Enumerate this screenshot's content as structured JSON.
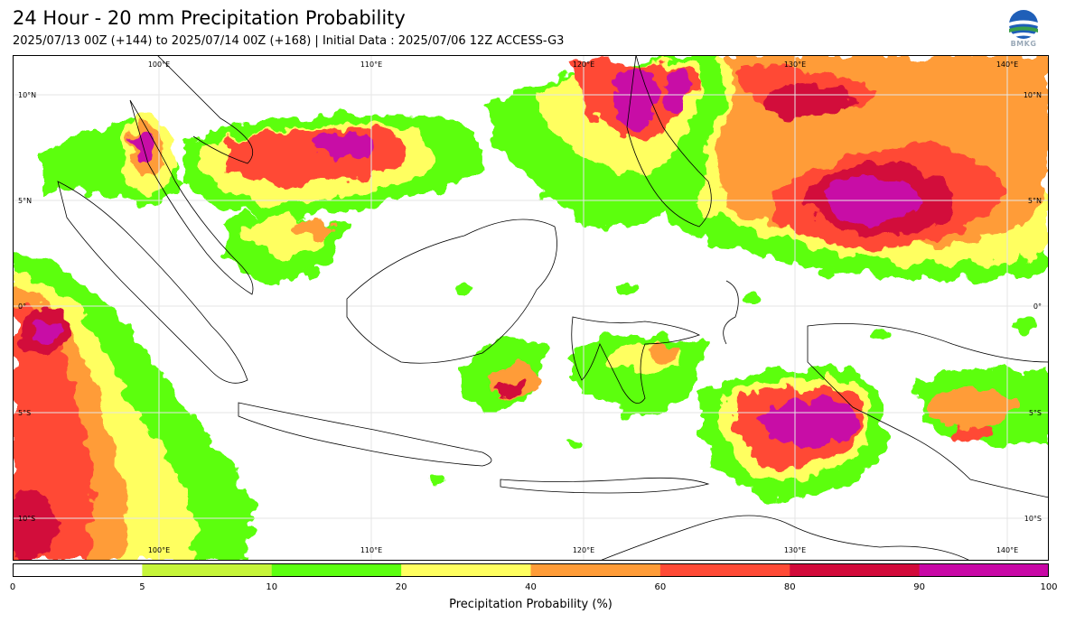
{
  "header": {
    "title": "24 Hour - 20 mm Precipitation Probability",
    "subtitle": "2025/07/13 00Z (+144) to 2025/07/14 00Z (+168) | Initial Data : 2025/07/06 12Z ACCESS-G3",
    "logo_text": "BMKG"
  },
  "map": {
    "lon_labels": [
      "100°E",
      "110°E",
      "120°E",
      "130°E",
      "140°E"
    ],
    "lat_labels": [
      "10°N",
      "5°N",
      "0°",
      "5°S",
      "10°S"
    ]
  },
  "colorbar": {
    "label": "Precipitation Probability (%)",
    "ticks": [
      "0",
      "5",
      "10",
      "20",
      "40",
      "60",
      "80",
      "90",
      "100"
    ],
    "colors": [
      "#ffffff",
      "#c6f53a",
      "#5cff10",
      "#ffff60",
      "#ff9c38",
      "#ff4a36",
      "#d20a3a",
      "#c808a6"
    ]
  }
}
